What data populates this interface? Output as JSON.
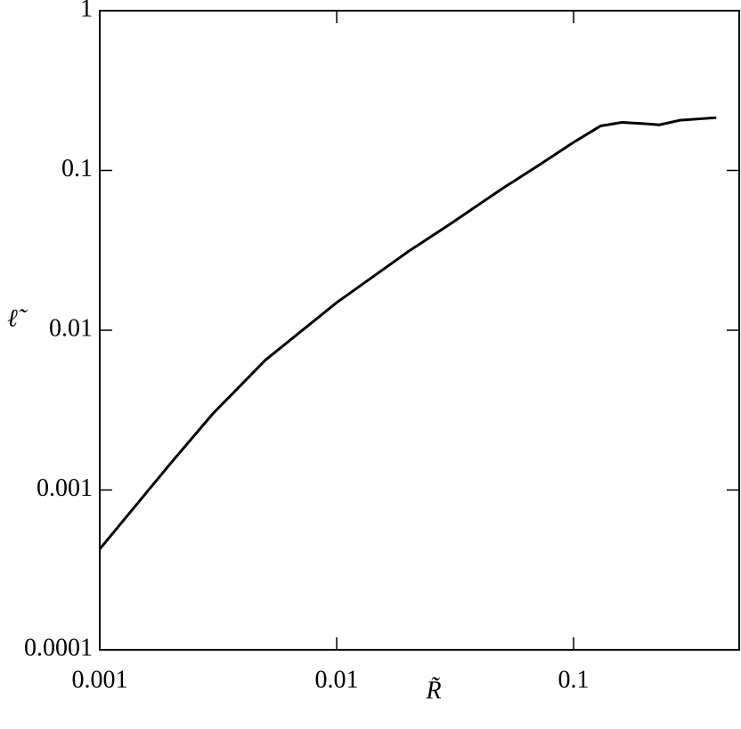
{
  "chart_data": {
    "type": "line",
    "xlabel": "R̃",
    "ylabel": "ℓ̃",
    "x": [
      0.001,
      0.002,
      0.003,
      0.005,
      0.01,
      0.02,
      0.03,
      0.05,
      0.07,
      0.1,
      0.13,
      0.16,
      0.2,
      0.23,
      0.28,
      0.4
    ],
    "series": [
      {
        "color": "#000000",
        "values": [
          0.000427,
          0.00148,
          0.003,
          0.0065,
          0.0149,
          0.031,
          0.046,
          0.077,
          0.106,
          0.15,
          0.19,
          0.2,
          0.196,
          0.193,
          0.206,
          0.214
        ]
      }
    ],
    "xlim": [
      0.001,
      0.5
    ],
    "ylim": [
      0.0001,
      1
    ],
    "xticks": [
      0.001,
      0.01,
      0.1
    ],
    "yticks": [
      0.0001,
      0.001,
      0.01,
      0.1,
      1
    ],
    "xscale": "log",
    "yscale": "log"
  }
}
